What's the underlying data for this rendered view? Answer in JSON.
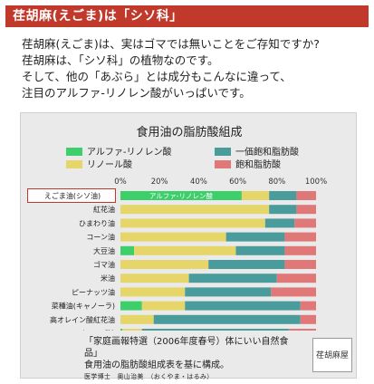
{
  "header": {
    "title": "荏胡麻(えごま)は「シソ科」"
  },
  "intro": {
    "lines": [
      "荏胡麻(えごま)は、実はゴマでは無いことをご存知ですか?",
      "荏胡麻は、「シソ科」の植物なのです。",
      "そして、他の「あぶら」とは成分もこんなに違って、",
      "注目のアルファ-リノレン酸がいっぱいです。"
    ]
  },
  "chart_data": {
    "type": "bar",
    "orientation": "horizontal",
    "stacked": true,
    "title": "食用油の脂肪酸組成",
    "x_ticks": [
      "0%",
      "20%",
      "40%",
      "60%",
      "80%",
      "100%"
    ],
    "xlim": [
      0,
      100
    ],
    "legend_placement": "top",
    "categories": [
      "えごま油(シソ油)",
      "紅花油",
      "ひまわり油",
      "コーン油",
      "大豆油",
      "ゴマ油",
      "米油",
      "ピーナッツ油",
      "菜種油(キャノーラ)",
      "高オレイン酸紅花油",
      "オリーブ油"
    ],
    "series": [
      {
        "name": "アルファ-リノレン酸",
        "color": "#3ccf6a",
        "values": [
          62,
          0,
          0,
          0,
          7,
          0,
          0,
          0,
          11,
          0,
          1
        ]
      },
      {
        "name": "リノール酸",
        "color": "#e6d66a",
        "values": [
          14,
          76,
          74,
          54,
          52,
          45,
          35,
          33,
          22,
          17,
          10
        ]
      },
      {
        "name": "一価飽和脂肪酸",
        "color": "#4a9c9c",
        "values": [
          14,
          14,
          15,
          30,
          25,
          39,
          45,
          44,
          59,
          75,
          75
        ]
      },
      {
        "name": "飽和脂肪酸",
        "color": "#e07878",
        "values": [
          10,
          10,
          11,
          16,
          16,
          16,
          20,
          23,
          8,
          8,
          14
        ]
      }
    ],
    "bar_annotations": [
      {
        "category": "えごま油(シソ油)",
        "text": "アルファ-リノレン酸"
      }
    ]
  },
  "source": {
    "line1": "「家庭画報特選（2006年度春号）体にいい自然食品」",
    "line2": "食用油の脂肪酸組成表を基に構成。",
    "line3": "医学博士　奥山治美　（おくやま・はるみ）"
  },
  "stamp": {
    "text": "荏胡麻屋"
  }
}
